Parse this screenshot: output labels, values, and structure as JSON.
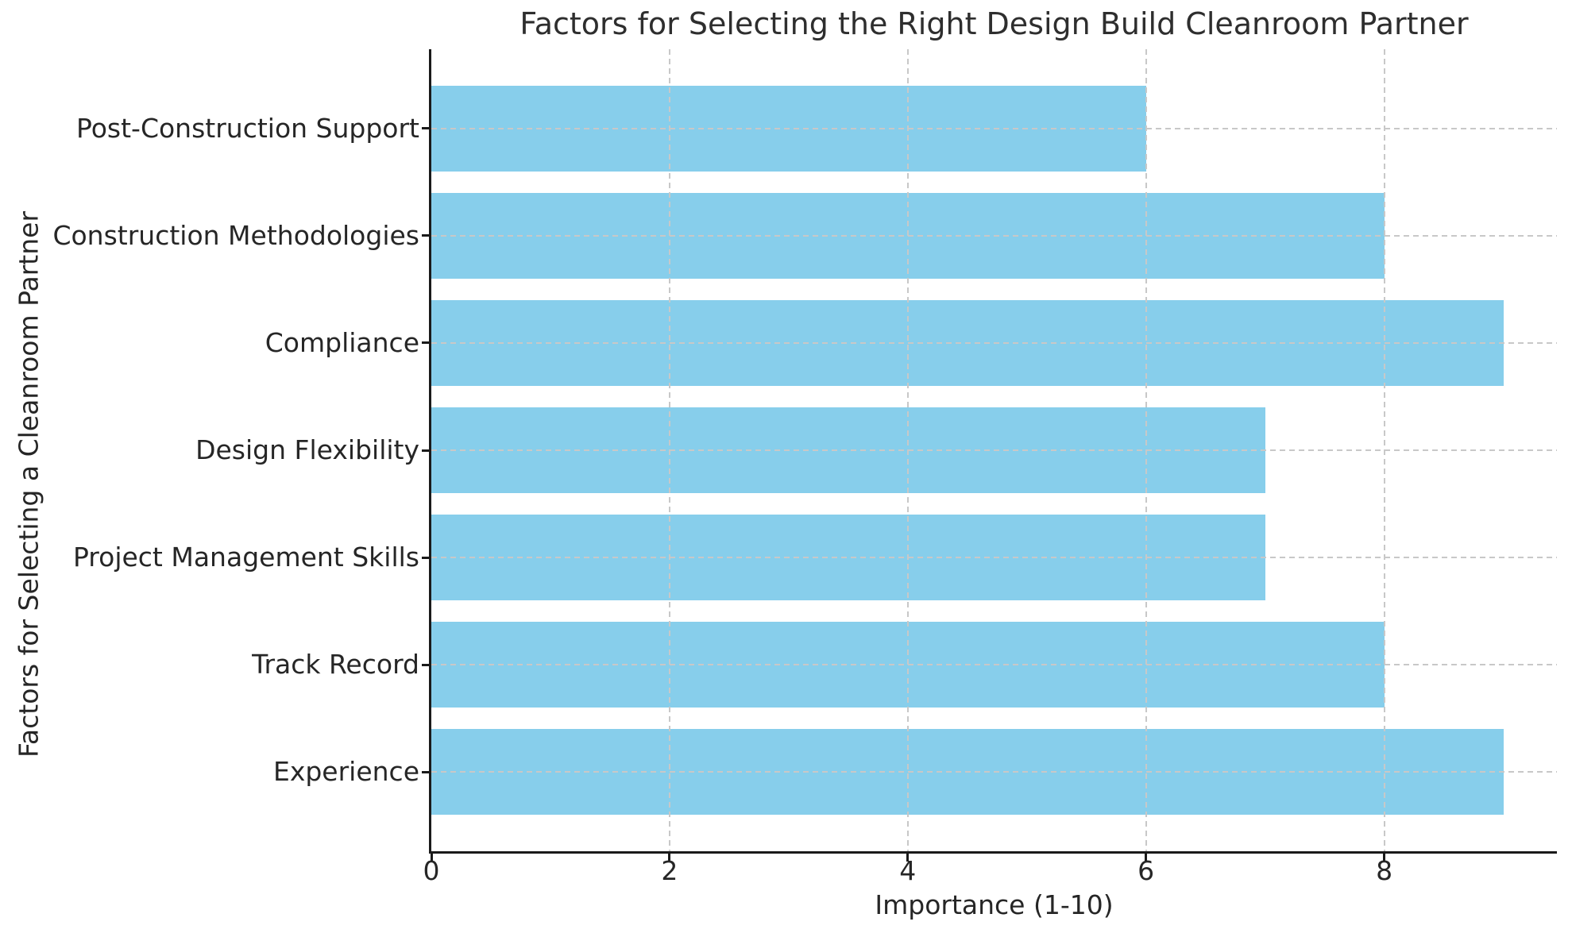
{
  "chart_data": {
    "type": "bar",
    "orientation": "horizontal",
    "title": "Factors for Selecting the Right Design Build Cleanroom Partner",
    "xlabel": "Importance (1-10)",
    "ylabel": "Factors for Selecting a Cleanroom Partner",
    "categories": [
      "Post-Construction Support",
      "Construction Methodologies",
      "Compliance",
      "Design Flexibility",
      "Project Management Skills",
      "Track Record",
      "Experience"
    ],
    "values": [
      6,
      8,
      9,
      7,
      7,
      8,
      9
    ],
    "xticks": [
      "0",
      "2",
      "4",
      "6",
      "8"
    ],
    "xtick_values": [
      0,
      2,
      4,
      6,
      8
    ],
    "xlim": [
      0,
      9.45
    ],
    "grid": "on",
    "grid_style": "dashed",
    "grid_axis": "both",
    "grid_above_bars": true,
    "legend": "none",
    "colors": {
      "bar": "#87CEEB",
      "grid": "#c8c8c8",
      "axis": "#1a1a1a",
      "text": "#262626",
      "background": "#ffffff"
    }
  }
}
